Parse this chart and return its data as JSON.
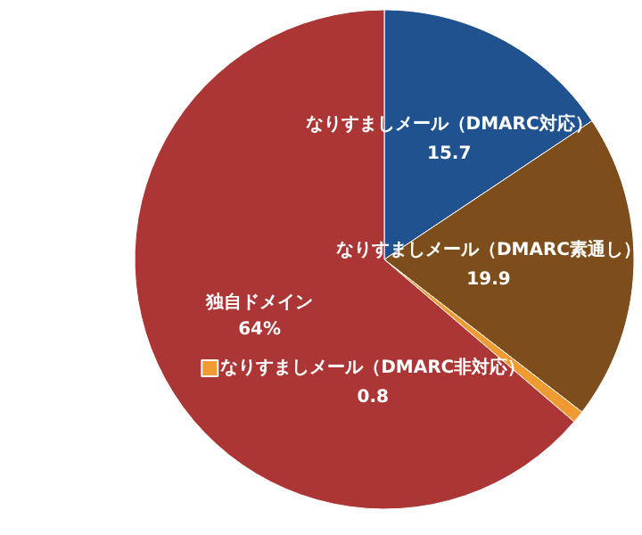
{
  "chart_data": {
    "type": "pie",
    "categories": [
      "なりすましメール（DMARC対応）",
      "なりすましメール（DMARC素通し）",
      "なりすましメール（DMARC非対応）",
      "独自ドメイン"
    ],
    "values": [
      15.7,
      19.9,
      0.8,
      64
    ],
    "value_labels": [
      "15.7",
      "19.9",
      "0.8",
      "64%"
    ],
    "colors": [
      "#20528f",
      "#7d4e1b",
      "#f09a32",
      "#ac3535"
    ]
  }
}
